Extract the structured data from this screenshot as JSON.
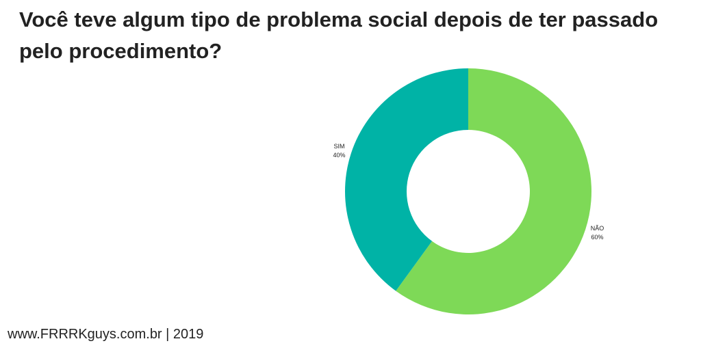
{
  "chart_data": {
    "type": "pie",
    "title": "Você teve algum tipo de problema social depois de ter passado pelo procedimento?",
    "donut": true,
    "slices": [
      {
        "label": "NÃO",
        "value": 60,
        "display": "60%",
        "color": "#7ed957"
      },
      {
        "label": "SIM",
        "value": 40,
        "display": "40%",
        "color": "#00b3a6"
      }
    ]
  },
  "footer": {
    "text": "www.FRRRKguys.com.br | 2019"
  }
}
